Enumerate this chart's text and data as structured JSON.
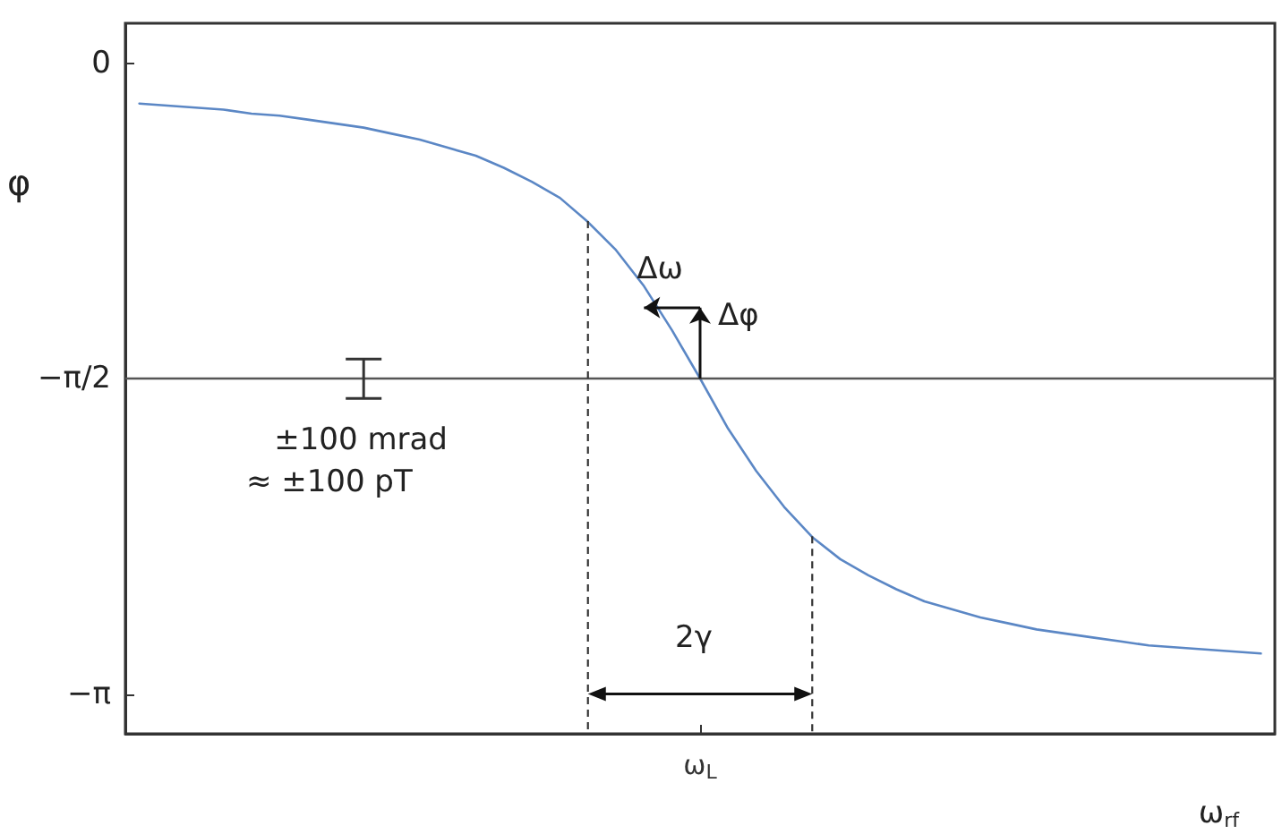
{
  "chart_data": {
    "type": "line",
    "xlabel": "ω$_{rf}$",
    "ylabel": "φ",
    "categories": [
      null,
      null,
      null,
      null,
      null,
      null,
      null,
      null,
      null,
      null,
      null,
      null,
      null,
      null,
      null,
      null,
      null,
      null,
      null,
      null,
      "ω$_{L}$",
      null,
      null,
      null,
      null,
      null,
      null,
      null,
      null,
      null,
      null,
      null,
      null,
      null,
      null,
      null,
      null,
      null,
      null,
      null,
      null
    ],
    "series": [
      {
        "color": "#5b87c5",
        "values": [
          -0.2,
          -0.21,
          -0.22,
          -0.23,
          -0.25,
          -0.26,
          -0.28,
          -0.3,
          -0.32,
          -0.35,
          -0.38,
          -0.42,
          -0.46,
          -0.52,
          -0.59,
          -0.67,
          -0.79,
          -0.93,
          -1.11,
          -1.33,
          -1.57,
          -1.82,
          -2.03,
          -2.21,
          -2.36,
          -2.47,
          -2.55,
          -2.62,
          -2.68,
          -2.72,
          -2.76,
          -2.79,
          -2.82,
          -2.84,
          -2.86,
          -2.88,
          -2.9,
          -2.91,
          -2.92,
          -2.93,
          -2.94
        ]
      }
    ],
    "ylim": [
      -3.34,
      0.2
    ],
    "yticks": [
      0,
      {
        "value": -1.5708,
        "label": "−π/2"
      },
      {
        "value": -3.1416,
        "label": "−π"
      }
    ],
    "ref_lines": [
      {
        "axis": "y",
        "value": -1.5708,
        "label": null,
        "color": "#555555",
        "line_style": "solid"
      }
    ],
    "annotations": [
      "Δω",
      "Δφ",
      "2γ",
      "±100 mrad",
      "≈ ±100 pT"
    ],
    "grid": false,
    "line_style": "solid",
    "marker": "none"
  }
}
